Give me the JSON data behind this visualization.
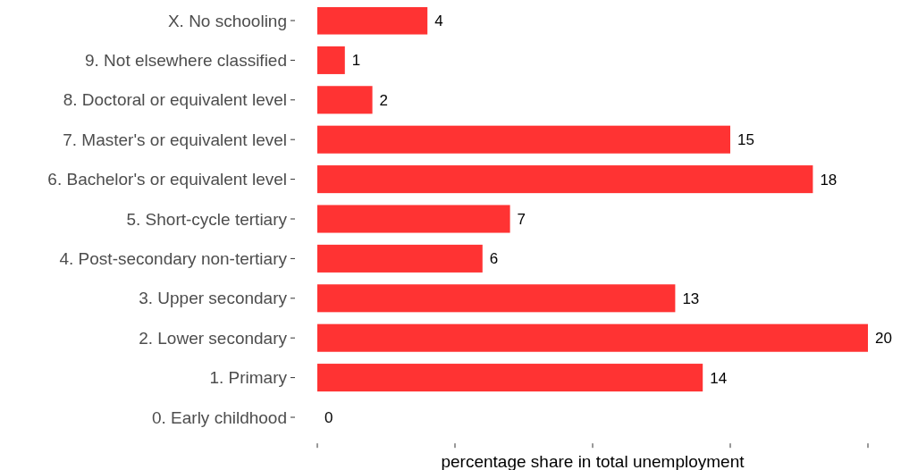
{
  "chart_data": {
    "type": "bar",
    "orientation": "horizontal",
    "xlabel": "percentage share in total unemployment",
    "categories": [
      "X. No schooling",
      "9. Not elsewhere classified",
      "8. Doctoral or equivalent level",
      "7. Master's or equivalent level",
      "6. Bachelor's or equivalent level",
      "5. Short-cycle tertiary",
      "4. Post-secondary non-tertiary",
      "3. Upper secondary",
      "2. Lower secondary",
      "1. Primary",
      "0. Early childhood"
    ],
    "values": [
      4,
      1,
      2,
      15,
      18,
      7,
      6,
      13,
      20,
      14,
      0
    ],
    "color": "#ff3333",
    "xlim": [
      0,
      20
    ],
    "xticks": [
      {
        "value": 0,
        "label": null
      },
      {
        "value": 5,
        "label": null
      },
      {
        "value": 10,
        "label": null
      },
      {
        "value": 15,
        "label": null
      },
      {
        "value": 20,
        "label": null
      }
    ],
    "tick_labels": "y",
    "data_labels": true,
    "grid": false
  }
}
